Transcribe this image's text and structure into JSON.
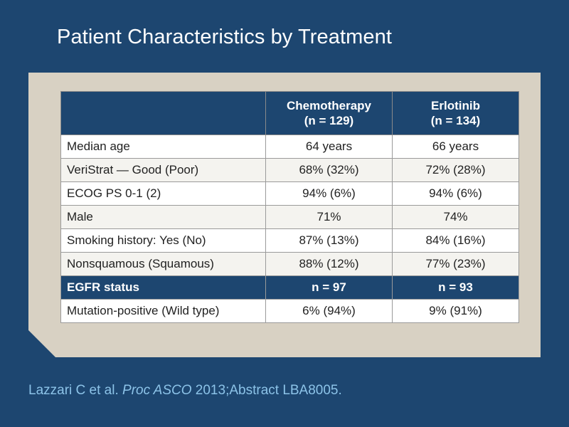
{
  "title": "Patient Characteristics by Treatment",
  "table": {
    "columns": [
      {
        "line1": "",
        "line2": ""
      },
      {
        "line1": "Chemotherapy",
        "line2": "(n = 129)"
      },
      {
        "line1": "Erlotinib",
        "line2": "(n = 134)"
      }
    ],
    "rows": [
      {
        "label": "Median age",
        "chemo": "64 years",
        "erlotinib": "66 years"
      },
      {
        "label": "VeriStrat — Good (Poor)",
        "chemo": "68% (32%)",
        "erlotinib": "72% (28%)"
      },
      {
        "label": "ECOG PS 0-1 (2)",
        "chemo": "94% (6%)",
        "erlotinib": "94% (6%)"
      },
      {
        "label": "Male",
        "chemo": "71%",
        "erlotinib": "74%"
      },
      {
        "label": "Smoking history: Yes (No)",
        "chemo": "87% (13%)",
        "erlotinib": "84% (16%)"
      },
      {
        "label": "Nonsquamous (Squamous)",
        "chemo": "88% (12%)",
        "erlotinib": "77% (23%)"
      }
    ],
    "section": {
      "label": "EGFR status",
      "chemo": "n = 97",
      "erlotinib": "n = 93"
    },
    "section_rows": [
      {
        "label": "Mutation-positive (Wild type)",
        "chemo": "6% (94%)",
        "erlotinib": "9% (91%)"
      }
    ]
  },
  "citation": {
    "authors": "Lazzari C et al.",
    "journal": "Proc ASCO",
    "rest": "2013;Abstract LBA8005."
  }
}
